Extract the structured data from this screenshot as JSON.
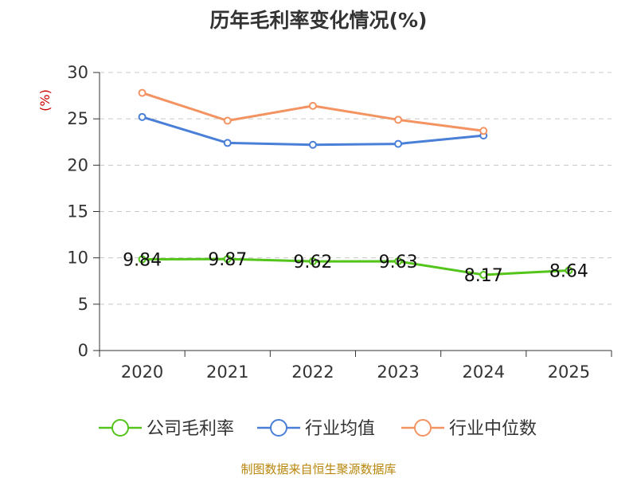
{
  "source": "制图数据来自恒生聚源数据库",
  "chart_data": {
    "type": "line",
    "title": "历年毛利率变化情况(%)",
    "ylabel": "(%)",
    "xlabel": "",
    "categories": [
      "2020",
      "2021",
      "2022",
      "2023",
      "2024",
      "2025"
    ],
    "ylim": [
      0,
      30
    ],
    "yticks": [
      0,
      5,
      10,
      15,
      20,
      25,
      30
    ],
    "grid": true,
    "legend_position": "bottom",
    "series": [
      {
        "name": "公司毛利率",
        "color": "#52c41a",
        "values": [
          9.84,
          9.87,
          9.62,
          9.63,
          8.17,
          8.64
        ],
        "labels": [
          "9.84",
          "9.87",
          "9.62",
          "9.63",
          "8.17",
          "8.64"
        ]
      },
      {
        "name": "行业均值",
        "color": "#4a7fd8",
        "values": [
          25.2,
          22.4,
          22.2,
          22.3,
          23.2,
          null
        ]
      },
      {
        "name": "行业中位数",
        "color": "#f39361",
        "values": [
          27.8,
          24.8,
          26.4,
          24.9,
          23.7,
          null
        ]
      }
    ]
  }
}
